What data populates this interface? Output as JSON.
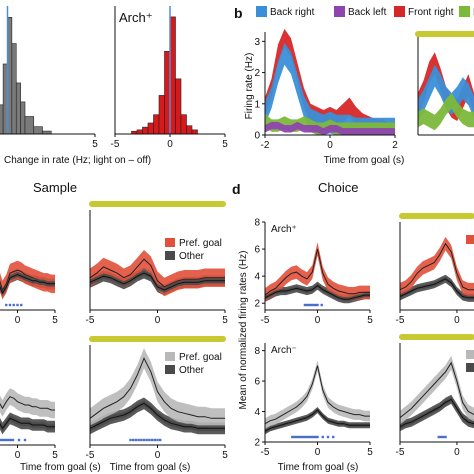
{
  "panel_letters": {
    "b": "b",
    "d": "d"
  },
  "section_titles": {
    "sample": "Sample",
    "choice": "Choice"
  },
  "colors": {
    "gray_hist": "#7a7a7a",
    "red_hist": "#d7191c",
    "blue_marker": "#4a90d9",
    "back_right": "#3b8fd8",
    "back_left": "#8e44ad",
    "front_right": "#d62728",
    "front_left": "#7cb83a",
    "pref_red": "#e0503a",
    "pref_light": "#b8b8b8",
    "other": "#4a4a4a",
    "light_bar": "#c8c831",
    "dots": "#4a6fc9"
  },
  "chart_data": [
    {
      "id": "hist-left",
      "type": "bar",
      "series_label": "",
      "xlabel": "Change in rate (Hz; light on – off)",
      "bin_edges": [
        -0.75,
        -0.5,
        -0.25,
        0,
        0.25,
        0.5,
        0.75,
        1.0,
        1.5,
        2.0,
        2.5
      ],
      "values": [
        6,
        20,
        48,
        80,
        62,
        35,
        22,
        12,
        5,
        2
      ],
      "xlim": [
        -1,
        5
      ],
      "xticks": [
        "5"
      ],
      "marker_x": 0.0
    },
    {
      "id": "hist-right",
      "type": "bar",
      "series_label": "Arch⁺",
      "bin_edges": [
        -3.5,
        -3.0,
        -2.5,
        -2.0,
        -1.5,
        -1.0,
        -0.5,
        0,
        0.5,
        1.0,
        1.5,
        2.0,
        2.5
      ],
      "values": [
        2,
        3,
        5,
        8,
        14,
        28,
        60,
        85,
        40,
        14,
        6,
        3
      ],
      "xlim": [
        -5,
        5
      ],
      "xticks": [
        "-5",
        "0",
        "5"
      ],
      "marker_x": 0.0
    },
    {
      "id": "panel-b",
      "type": "area",
      "legend": [
        "Back right",
        "Back left",
        "Front right",
        "Front left"
      ],
      "legend_visible": [
        "Back right",
        "Back left",
        "Front right",
        "F"
      ],
      "ylabel": "Firing rate (Hz)",
      "xlabel": "Time from goal (s)",
      "xlim": [
        -2,
        2
      ],
      "ylim": [
        0,
        3.3
      ],
      "xticks": [
        "-2",
        "0",
        "2"
      ],
      "yticks": [
        "0",
        "1",
        "2",
        "3"
      ],
      "x": [
        -2.0,
        -1.8,
        -1.6,
        -1.4,
        -1.2,
        -1.0,
        -0.8,
        -0.6,
        -0.4,
        -0.2,
        0.0,
        0.2,
        0.4,
        0.6,
        0.8,
        1.0,
        1.2,
        1.4,
        1.6,
        1.8,
        2.0
      ],
      "series": [
        {
          "name": "Front right",
          "values": [
            0.9,
            1.5,
            2.6,
            3.1,
            2.8,
            2.0,
            1.2,
            0.7,
            0.6,
            0.5,
            0.6,
            0.5,
            0.7,
            0.9,
            0.6,
            0.4,
            0.3,
            0.2,
            0.2,
            0.1,
            0.1
          ],
          "half": 0.3
        },
        {
          "name": "Back right",
          "values": [
            0.7,
            1.2,
            2.0,
            2.6,
            2.3,
            1.6,
            0.9,
            0.5,
            0.4,
            0.3,
            0.4,
            0.3,
            0.3,
            0.3,
            0.2,
            0.2,
            0.2,
            0.2,
            0.2,
            0.2,
            0.2
          ],
          "half": 0.35
        },
        {
          "name": "Front left",
          "values": [
            0.5,
            0.3,
            0.3,
            0.4,
            0.3,
            0.3,
            0.4,
            0.3,
            0.2,
            0.2,
            0.3,
            0.2,
            0.2,
            0.2,
            0.2,
            0.2,
            0.2,
            0.2,
            0.2,
            0.2,
            0.2
          ],
          "half": 0.2
        },
        {
          "name": "Back left",
          "values": [
            0.2,
            0.3,
            0.3,
            0.2,
            0.2,
            0.3,
            0.2,
            0.2,
            0.2,
            0.1,
            0.2,
            0.2,
            0.1,
            0.1,
            0.1,
            0.1,
            0.1,
            0.1,
            0.1,
            0.1,
            0.1
          ],
          "half": 0.12
        }
      ]
    },
    {
      "id": "panel-b-right",
      "type": "area",
      "x": [
        -2.0,
        -1.8,
        -1.6,
        -1.4,
        -1.2,
        -1.0,
        -0.8,
        -0.6,
        -0.4,
        -0.2,
        0.0
      ],
      "series": [
        {
          "name": "Front right",
          "values": [
            1.0,
            1.4,
            2.0,
            2.3,
            1.8,
            1.2,
            0.9,
            0.8,
            1.2,
            1.6,
            1.0
          ],
          "half": 0.35
        },
        {
          "name": "Back right",
          "values": [
            0.8,
            1.1,
            1.5,
            1.9,
            1.6,
            1.2,
            1.0,
            1.2,
            1.5,
            1.3,
            0.9
          ],
          "half": 0.35
        },
        {
          "name": "Front left",
          "values": [
            0.5,
            0.6,
            0.5,
            0.4,
            0.6,
            0.9,
            1.1,
            0.8,
            0.6,
            0.5,
            0.5
          ],
          "half": 0.25
        }
      ]
    },
    {
      "id": "sample-top-left",
      "type": "line",
      "x": [
        -5,
        -4.5,
        -4,
        -3.5,
        -3,
        -2.5,
        -2,
        -1.5,
        -1,
        -0.5,
        0,
        0.5,
        1,
        1.5,
        2,
        2.5,
        3,
        3.5,
        4,
        4.5,
        5
      ],
      "series": [
        {
          "name": "Pref. goal",
          "values": [
            6.0,
            6.5,
            7.0,
            6.4,
            5.2,
            3.6,
            2.8,
            3.2,
            3.9,
            4.0,
            4.1,
            4.0,
            3.8,
            3.7,
            3.6,
            3.5,
            3.4,
            3.3,
            3.3,
            3.2,
            3.2
          ],
          "half": 0.6
        },
        {
          "name": "Other",
          "values": [
            4.5,
            4.8,
            5.2,
            5.0,
            4.2,
            3.2,
            2.6,
            3.0,
            3.6,
            3.7,
            3.8,
            3.7,
            3.6,
            3.5,
            3.4,
            3.4,
            3.3,
            3.3,
            3.2,
            3.2,
            3.2
          ],
          "half": 0.35
        }
      ],
      "ylim": [
        1.5,
        8
      ],
      "xticks": [
        "0",
        "5"
      ],
      "dots": [
        -1.5,
        -1.0,
        -0.5,
        0.0,
        0.5
      ]
    },
    {
      "id": "sample-top-right",
      "type": "line",
      "legend": [
        "Pref. goal",
        "Other"
      ],
      "x": [
        -5,
        -4.5,
        -4,
        -3.5,
        -3,
        -2.5,
        -2,
        -1.5,
        -1,
        -0.5,
        0,
        0.5,
        1,
        1.5,
        2,
        2.5,
        3,
        3.5,
        4,
        4.5,
        5
      ],
      "series": [
        {
          "name": "Pref. goal",
          "values": [
            3.6,
            3.9,
            4.3,
            4.1,
            3.9,
            3.6,
            3.8,
            4.3,
            4.8,
            4.4,
            3.4,
            3.0,
            3.2,
            3.4,
            3.5,
            3.5,
            3.5,
            3.6,
            3.6,
            3.6,
            3.6
          ],
          "half": 0.6
        },
        {
          "name": "Other",
          "values": [
            3.3,
            3.5,
            3.7,
            3.6,
            3.4,
            3.2,
            3.4,
            3.7,
            3.9,
            3.7,
            3.0,
            2.8,
            3.0,
            3.2,
            3.3,
            3.3,
            3.3,
            3.4,
            3.4,
            3.4,
            3.4
          ],
          "half": 0.35
        }
      ],
      "ylim": [
        1.5,
        8
      ],
      "xlim": [
        -5,
        5
      ],
      "xticks": [
        "-5",
        "0",
        "5"
      ]
    },
    {
      "id": "sample-bottom-left",
      "type": "line",
      "x": [
        -5,
        -4.5,
        -4,
        -3.5,
        -3,
        -2.5,
        -2,
        -1.5,
        -1,
        -0.5,
        0,
        0.5,
        1,
        1.5,
        2,
        2.5,
        3,
        3.5,
        4,
        4.5,
        5
      ],
      "series": [
        {
          "name": "Pref. goal",
          "values": [
            5.8,
            6.0,
            6.2,
            5.8,
            5.2,
            4.6,
            4.2,
            4.6,
            4.9,
            4.8,
            4.6,
            4.5,
            4.4,
            4.4,
            4.3,
            4.3,
            4.2,
            4.2,
            4.2,
            4.1,
            4.1
          ],
          "half": 0.5
        },
        {
          "name": "Other",
          "values": [
            4.5,
            4.6,
            4.7,
            4.4,
            4.0,
            3.4,
            3.0,
            3.3,
            3.6,
            3.5,
            3.4,
            3.3,
            3.3,
            3.3,
            3.2,
            3.2,
            3.2,
            3.2,
            3.1,
            3.1,
            3.1
          ],
          "half": 0.35
        }
      ],
      "ylim": [
        2,
        8
      ],
      "xticks": [
        "0",
        "5"
      ],
      "dots": [
        -3.0,
        -2.7,
        -2.4,
        -2.1,
        -1.8,
        -1.5,
        -1.2,
        -0.9,
        -0.6,
        0.2,
        1.0
      ]
    },
    {
      "id": "sample-bottom-right",
      "type": "line",
      "legend": [
        "Pref. goal",
        "Other"
      ],
      "x": [
        -5,
        -4.5,
        -4,
        -3.5,
        -3,
        -2.5,
        -2,
        -1.5,
        -1,
        -0.5,
        0,
        0.5,
        1,
        1.5,
        2,
        2.5,
        3,
        3.5,
        4,
        4.5,
        5
      ],
      "series": [
        {
          "name": "Pref. goal",
          "values": [
            3.6,
            3.9,
            4.2,
            4.4,
            4.6,
            4.9,
            5.4,
            6.2,
            7.2,
            6.4,
            5.2,
            4.6,
            4.2,
            4.0,
            3.9,
            3.8,
            3.7,
            3.7,
            3.6,
            3.6,
            3.6
          ],
          "half": 0.6
        },
        {
          "name": "Other",
          "values": [
            3.0,
            3.2,
            3.4,
            3.6,
            3.7,
            3.8,
            4.0,
            4.3,
            4.5,
            4.2,
            3.8,
            3.5,
            3.3,
            3.2,
            3.1,
            3.1,
            3.0,
            3.0,
            3.0,
            3.0,
            3.0
          ],
          "half": 0.35
        }
      ],
      "ylim": [
        2,
        8
      ],
      "xlim": [
        -5,
        5
      ],
      "xticks": [
        "-5",
        "0",
        "5"
      ],
      "xlabel": "Time from goal (s)",
      "dots": [
        -2.0,
        -1.8,
        -1.6,
        -1.4,
        -1.2,
        -1.0,
        -0.8,
        -0.6,
        -0.4,
        -0.2,
        0.0,
        0.2
      ]
    },
    {
      "id": "choice-top-left",
      "type": "line",
      "series_label": "Arch⁺",
      "x": [
        -5,
        -4.5,
        -4,
        -3.5,
        -3,
        -2.5,
        -2,
        -1.5,
        -1,
        -0.5,
        0,
        0.5,
        1,
        1.5,
        2,
        2.5,
        3,
        3.5,
        4,
        4.5,
        5
      ],
      "series": [
        {
          "name": "Pref. goal",
          "values": [
            2.6,
            2.9,
            3.1,
            3.5,
            3.9,
            4.2,
            4.3,
            4.0,
            3.8,
            4.3,
            6.0,
            4.2,
            3.4,
            3.1,
            2.9,
            2.8,
            2.7,
            2.7,
            2.8,
            2.8,
            2.8
          ],
          "half": 0.5
        },
        {
          "name": "Other",
          "values": [
            2.4,
            2.6,
            2.8,
            2.9,
            2.9,
            3.0,
            3.1,
            3.0,
            2.9,
            3.0,
            3.3,
            3.0,
            2.8,
            2.6,
            2.4,
            2.3,
            2.3,
            2.4,
            2.5,
            2.6,
            2.6
          ],
          "half": 0.3
        }
      ],
      "ylim": [
        1.5,
        8
      ],
      "xlim": [
        -5,
        5
      ],
      "xticks": [
        "-5",
        "0",
        "5"
      ],
      "yticks": [
        "2",
        "4",
        "6",
        "8"
      ],
      "dots": [
        -1.2,
        -1.0,
        -0.8,
        -0.6,
        -0.4,
        -0.2,
        0.0,
        0.4
      ]
    },
    {
      "id": "choice-top-right",
      "type": "line",
      "x": [
        -5,
        -4.5,
        -4,
        -3.5,
        -3,
        -2.5,
        -2,
        -1.5,
        -1,
        -0.5,
        0,
        0.5,
        1,
        1.5
      ],
      "series": [
        {
          "name": "Pref. goal",
          "values": [
            3.0,
            3.2,
            3.6,
            4.2,
            4.6,
            4.8,
            5.0,
            5.6,
            6.4,
            5.8,
            4.2,
            3.2,
            3.0,
            3.0
          ],
          "half": 0.5
        },
        {
          "name": "Other",
          "values": [
            2.5,
            2.7,
            2.9,
            3.1,
            3.2,
            3.3,
            3.4,
            3.6,
            3.8,
            3.5,
            2.9,
            2.5,
            2.4,
            2.4
          ],
          "half": 0.3
        }
      ],
      "ylim": [
        1.5,
        8
      ],
      "xlim": [
        -5,
        1.5
      ],
      "xticks": [
        "-5",
        "0"
      ]
    },
    {
      "id": "choice-bottom-left",
      "type": "line",
      "series_label": "Arch⁻",
      "ylabel": "Mean of normalized firing rates (Hz)",
      "xlabel": "Time from goal (s)",
      "x": [
        -5,
        -4.5,
        -4,
        -3.5,
        -3,
        -2.5,
        -2,
        -1.5,
        -1,
        -0.5,
        0,
        0.5,
        1,
        1.5,
        2,
        2.5,
        3,
        3.5,
        4,
        4.5,
        5
      ],
      "series": [
        {
          "name": "Pref. goal",
          "values": [
            3.2,
            3.4,
            3.5,
            3.7,
            3.9,
            4.1,
            4.3,
            4.6,
            5.0,
            5.8,
            7.0,
            5.4,
            4.6,
            4.3,
            4.1,
            4.0,
            3.9,
            3.8,
            3.8,
            3.7,
            3.7
          ],
          "half": 0.35
        },
        {
          "name": "Other",
          "values": [
            2.7,
            2.9,
            3.0,
            3.1,
            3.2,
            3.3,
            3.4,
            3.5,
            3.6,
            3.8,
            4.1,
            3.7,
            3.4,
            3.3,
            3.2,
            3.2,
            3.1,
            3.1,
            3.1,
            3.1,
            3.1
          ],
          "half": 0.2
        }
      ],
      "ylim": [
        2,
        8.5
      ],
      "xlim": [
        -5,
        5
      ],
      "xticks": [
        "-5",
        "0",
        "5"
      ],
      "yticks": [
        "2",
        "4",
        "6",
        "8"
      ],
      "dots": [
        -2.4,
        -2.2,
        -2.0,
        -1.8,
        -1.6,
        -1.4,
        -1.2,
        -1.0,
        -0.8,
        -0.6,
        -0.4,
        -0.2,
        0.0,
        0.5,
        1.0,
        1.5
      ]
    },
    {
      "id": "choice-bottom-right",
      "type": "line",
      "x": [
        -5,
        -4.5,
        -4,
        -3.5,
        -3,
        -2.5,
        -2,
        -1.5,
        -1,
        -0.5,
        0,
        0.5,
        1,
        1.5
      ],
      "series": [
        {
          "name": "Pref. goal",
          "values": [
            3.6,
            3.9,
            4.2,
            4.6,
            5.0,
            5.4,
            5.8,
            6.2,
            6.6,
            7.2,
            6.0,
            4.6,
            4.0,
            3.8
          ],
          "half": 0.45
        },
        {
          "name": "Other",
          "values": [
            3.0,
            3.2,
            3.3,
            3.5,
            3.7,
            3.9,
            4.1,
            4.3,
            4.6,
            4.8,
            4.2,
            3.6,
            3.3,
            3.2
          ],
          "half": 0.3
        }
      ],
      "ylim": [
        2,
        8.5
      ],
      "xlim": [
        -5,
        1.5
      ],
      "xticks": [
        "-5",
        "0"
      ],
      "xlabel": "Time from goal (s)",
      "dots": [
        -1.6,
        -1.4,
        -1.2,
        -1.0
      ]
    }
  ]
}
